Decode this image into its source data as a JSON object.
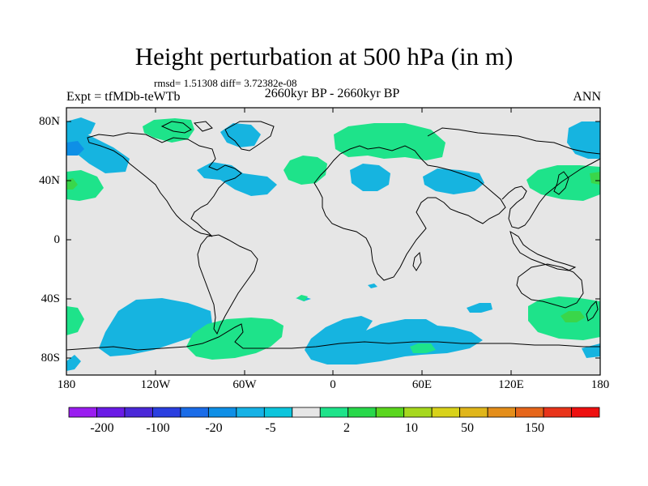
{
  "title": "Height perturbation at 500 hPa (in m)",
  "stats": "rmsd= 1.51308 diff= 3.72382e-08",
  "experiment": "Expt = tfMDb-teWTb",
  "period": "2660kyr BP - 2660kyr BP",
  "season": "ANN",
  "lat_labels": [
    "80N",
    "40N",
    "0",
    "40S",
    "80S"
  ],
  "lon_labels": [
    "180",
    "120W",
    "60W",
    "0",
    "60E",
    "120E",
    "180"
  ],
  "colorbar": {
    "colors": [
      "#9a1df0",
      "#6a1be6",
      "#4a28d8",
      "#2a3fe0",
      "#1a6ce8",
      "#0e8fe6",
      "#16b2e6",
      "#0cc5dc",
      "#e6e6e6",
      "#1ee38a",
      "#28d84a",
      "#5ad61e",
      "#a6d81e",
      "#d8d21a",
      "#e0b61a",
      "#e48e1a",
      "#e6661a",
      "#e8341a",
      "#ee1010"
    ],
    "labels": [
      "-200",
      "-100",
      "-20",
      "-5",
      "2",
      "10",
      "50",
      "150"
    ]
  },
  "colors": {
    "background": "#e6e6e6",
    "negative": "#16b4e0",
    "positive": "#1ee38a",
    "strong_positive": "#3ad64a"
  }
}
